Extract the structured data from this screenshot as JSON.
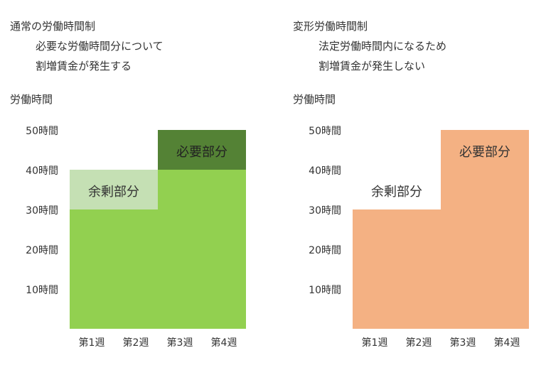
{
  "left": {
    "title": "通常の労働時間制",
    "notes": [
      "必要な労働時間分について",
      "割増賃金が発生する"
    ],
    "axis_label": "労働時間",
    "y_ticks": [
      "50時間",
      "40時間",
      "30時間",
      "20時間",
      "10時間"
    ],
    "weeks": [
      "第1週",
      "第2週",
      "第3週",
      "第4週"
    ],
    "base_hours": [
      30,
      30,
      40,
      40
    ],
    "surplus_hours": [
      10,
      10,
      0,
      0
    ],
    "necessary_hours": [
      0,
      0,
      10,
      10
    ],
    "surplus_label": "余剰部分",
    "necessary_label": "必要部分",
    "colors": {
      "base": "#92d050",
      "surplus": "#c5e0b4",
      "necessary": "#548235"
    }
  },
  "right": {
    "title": "変形労働時間制",
    "notes": [
      "法定労働時間内になるため",
      "割増賃金が発生しない"
    ],
    "axis_label": "労働時間",
    "y_ticks": [
      "50時間",
      "40時間",
      "30時間",
      "20時間",
      "10時間"
    ],
    "weeks": [
      "第1週",
      "第2週",
      "第3週",
      "第4週"
    ],
    "hours": [
      30,
      30,
      50,
      50
    ],
    "surplus_label": "余剰部分",
    "necessary_label": "必要部分",
    "colors": {
      "base": "#f4b183"
    }
  }
}
